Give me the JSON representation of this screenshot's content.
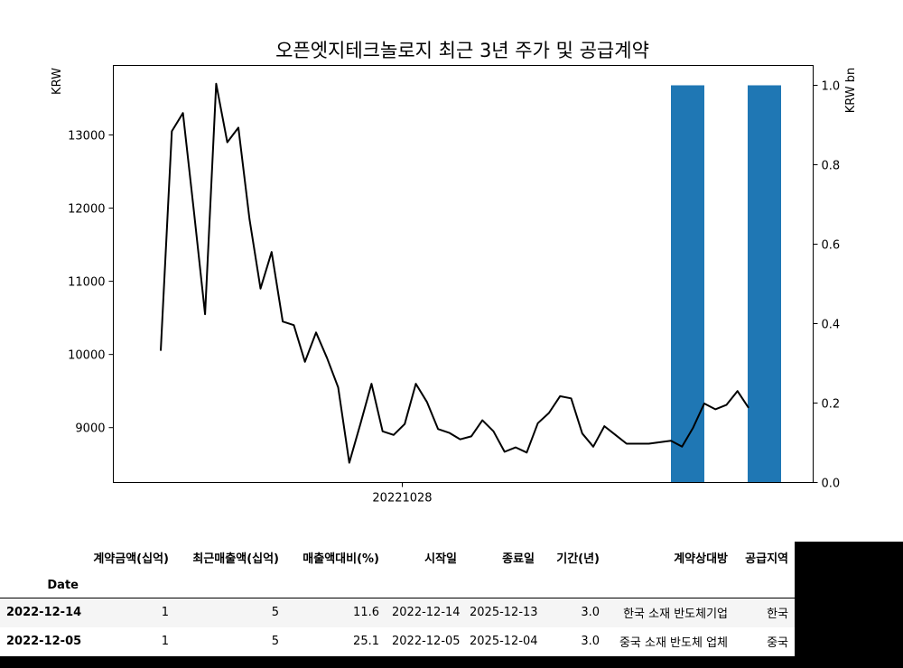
{
  "chart_data": {
    "type": "line+bar",
    "title": "오픈엣지테크놀로지 최근 3년 주가 및 공급계약",
    "ylabel_left": "KRW",
    "ylabel_right": "KRW bn",
    "x_tick_labels": [
      "20221028"
    ],
    "ylim_left": [
      8250,
      13950
    ],
    "yticks_left": [
      9000,
      10000,
      11000,
      12000,
      13000
    ],
    "ylim_right": [
      0,
      1.05
    ],
    "yticks_right": [
      0.0,
      0.2,
      0.4,
      0.6,
      0.8,
      1.0
    ],
    "grid": false,
    "legend": "none",
    "line_color": "#000000",
    "bar_color": "#1f77b4",
    "series": [
      {
        "type": "line",
        "axis": "left",
        "values": [
          10050,
          13050,
          13300,
          11950,
          10550,
          13700,
          12900,
          13100,
          11850,
          10900,
          11400,
          10450,
          10400,
          9900,
          10300,
          9950,
          9550,
          8520,
          9050,
          9600,
          8950,
          8900,
          9050,
          9600,
          9350,
          8980,
          8930,
          8840,
          8880,
          9100,
          8950,
          8670,
          8730,
          8660,
          9060,
          9200,
          9430,
          9400,
          8920,
          8740,
          9020,
          8900,
          8780,
          8780,
          8780,
          8800,
          8820,
          8740,
          9000,
          9330,
          9250,
          9310,
          9500,
          9270
        ]
      },
      {
        "type": "bar",
        "axis": "right",
        "values": [
          1,
          1
        ]
      }
    ]
  },
  "table": {
    "headers": [
      "계약금액(십억)",
      "최근매출액(십억)",
      "매출액대비(%)",
      "시작일",
      "종료일",
      "기간(년)",
      "계약상대방",
      "공급지역"
    ],
    "index_name": "Date",
    "rows": [
      {
        "date": "2022-12-14",
        "cells": [
          "1",
          "5",
          "11.6",
          "2022-12-14",
          "2025-12-13",
          "3.0",
          "한국 소재 반도체기업",
          "한국"
        ]
      },
      {
        "date": "2022-12-05",
        "cells": [
          "1",
          "5",
          "25.1",
          "2022-12-05",
          "2025-12-04",
          "3.0",
          "중국 소재 반도체 업체",
          "중국"
        ]
      }
    ]
  }
}
